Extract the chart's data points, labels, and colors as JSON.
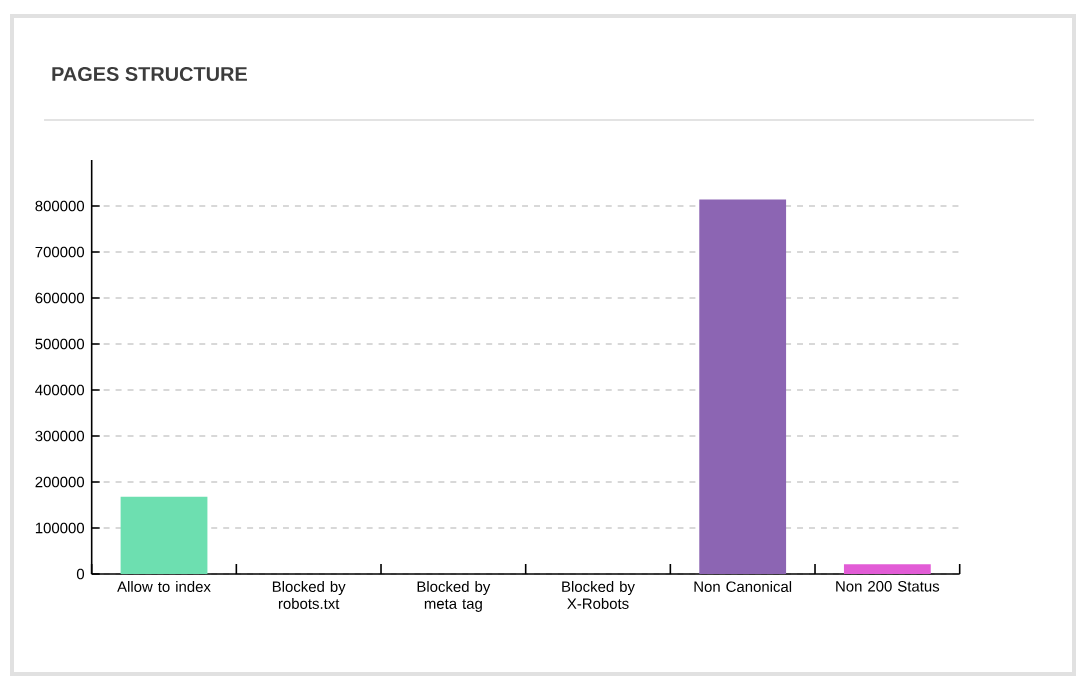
{
  "chart_data": {
    "type": "bar",
    "title": "PAGES STRUCTURE",
    "categories": [
      "Allow to index",
      "Blocked by robots.txt",
      "Blocked by meta tag",
      "Blocked by X-Robots",
      "Non Canonical",
      "Non 200 Status"
    ],
    "values": [
      168000,
      0,
      0,
      0,
      814000,
      21000
    ],
    "colors": [
      "#6ddfb0",
      "#6ddfb0",
      "#6ddfb0",
      "#6ddfb0",
      "#8c65b3",
      "#e25cd6"
    ],
    "ylim": [
      0,
      900000
    ],
    "yticks": [
      0,
      100000,
      200000,
      300000,
      400000,
      500000,
      600000,
      700000,
      800000
    ],
    "grid": "y"
  }
}
